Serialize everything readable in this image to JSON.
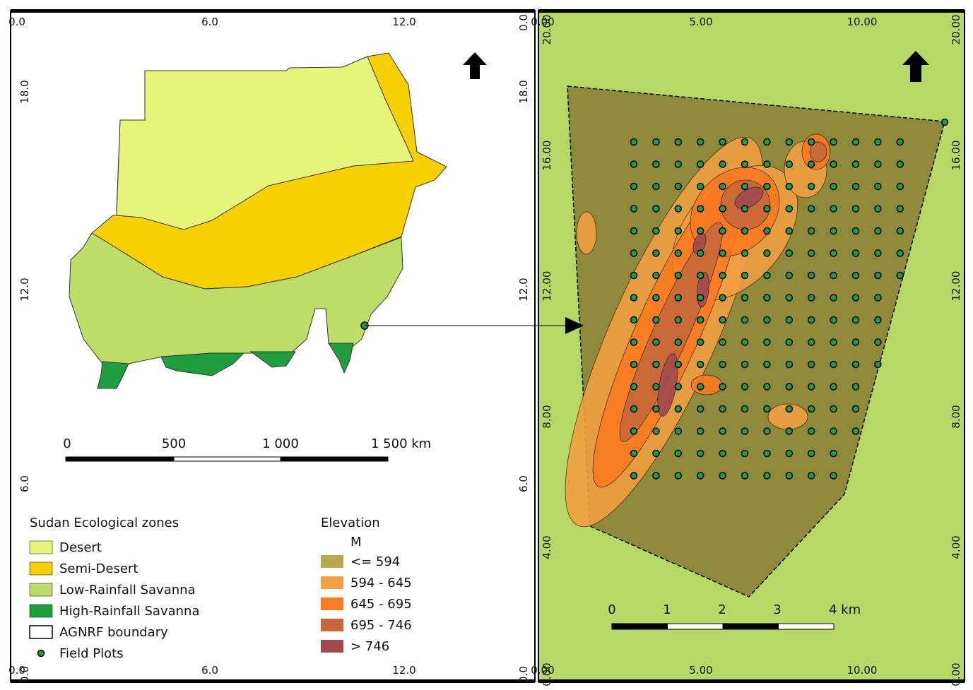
{
  "zone_map": {
    "frame_labels": {
      "top": [
        "0.0",
        "6.0",
        "12.0"
      ],
      "left": [
        "18.0",
        "12.0",
        "6.0",
        "0.0"
      ],
      "right": [
        "0.0",
        "18.0",
        "12.0",
        "6.0",
        "0.0"
      ],
      "bottom": [
        "0.0",
        "6.0",
        "12.0"
      ]
    },
    "scale_bar": [
      "0",
      "500",
      "1 000",
      "1 500 km"
    ]
  },
  "zone_legend": {
    "title": "Sudan Ecological zones",
    "items": [
      {
        "label": "Desert",
        "color": "#e6f57a"
      },
      {
        "label": "Semi-Desert",
        "color": "#f7d000"
      },
      {
        "label": "Low-Rainfall Savanna",
        "color": "#bcdd66"
      },
      {
        "label": "High-Rainfall Savanna",
        "color": "#1e9e3e"
      },
      {
        "label": "AGNRF boundary",
        "color": "#ffffff"
      },
      {
        "label": "Field Plots",
        "color": "#1e9e3e"
      }
    ]
  },
  "elevation_legend": {
    "title": "Elevation",
    "unit": "M",
    "items": [
      {
        "label": "<= 594",
        "color": "#8f8a3a"
      },
      {
        "label": "594 - 645",
        "color": "#f0a040"
      },
      {
        "label": "645 - 695",
        "color": "#f97a20"
      },
      {
        "label": "695 - 746",
        "color": "#c8683a"
      },
      {
        "label": "> 746",
        "color": "#a04a50"
      }
    ]
  },
  "site_map": {
    "frame_labels": {
      "top": [
        "0.00",
        "5.00",
        "10.00"
      ],
      "left": [
        "20.00",
        "16.00",
        "12.00",
        "8.00",
        "4.00",
        "0.00"
      ],
      "right": [
        "20.00",
        "16.00",
        "12.00",
        "8.00",
        "4.00",
        "0.00"
      ],
      "bottom": [
        "0.00",
        "5.00",
        "10.00"
      ]
    },
    "scale_bar": [
      "0",
      "1",
      "2",
      "3",
      "4 km"
    ]
  }
}
